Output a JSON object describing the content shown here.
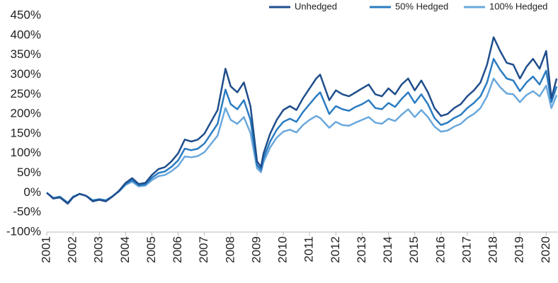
{
  "chart_data": {
    "type": "line",
    "x": [
      2001,
      2001.25,
      2001.5,
      2001.8,
      2002,
      2002.25,
      2002.5,
      2002.75,
      2003,
      2003.25,
      2003.5,
      2003.75,
      2004,
      2004.25,
      2004.5,
      2004.75,
      2005,
      2005.25,
      2005.5,
      2005.75,
      2006,
      2006.25,
      2006.5,
      2006.75,
      2007,
      2007.25,
      2007.5,
      2007.8,
      2008,
      2008.25,
      2008.5,
      2008.75,
      2009,
      2009.15,
      2009.25,
      2009.5,
      2009.75,
      2010,
      2010.25,
      2010.5,
      2010.75,
      2011,
      2011.25,
      2011.4,
      2011.75,
      2012,
      2012.25,
      2012.5,
      2012.75,
      2013,
      2013.25,
      2013.5,
      2013.75,
      2014,
      2014.25,
      2014.5,
      2014.75,
      2015,
      2015.25,
      2015.5,
      2015.75,
      2016,
      2016.25,
      2016.5,
      2016.75,
      2017,
      2017.25,
      2017.5,
      2017.75,
      2018,
      2018.25,
      2018.5,
      2018.75,
      2019,
      2019.25,
      2019.5,
      2019.75,
      2020,
      2020.2,
      2020.4
    ],
    "series": [
      {
        "name": "Unhedged",
        "color": "#1f4e8c",
        "values": [
          0,
          -15,
          -12,
          -28,
          -12,
          -3,
          -8,
          -22,
          -18,
          -22,
          -10,
          5,
          25,
          37,
          22,
          25,
          45,
          60,
          65,
          80,
          100,
          135,
          130,
          135,
          150,
          180,
          210,
          315,
          270,
          255,
          280,
          220,
          80,
          65,
          100,
          150,
          185,
          210,
          220,
          210,
          240,
          265,
          290,
          300,
          235,
          260,
          250,
          245,
          255,
          265,
          275,
          250,
          245,
          265,
          250,
          275,
          290,
          260,
          285,
          255,
          215,
          195,
          200,
          215,
          225,
          245,
          260,
          280,
          325,
          395,
          360,
          330,
          325,
          290,
          320,
          340,
          315,
          360,
          240,
          290
        ]
      },
      {
        "name": "50% Hedged",
        "color": "#2a7cc1",
        "values": [
          0,
          -14,
          -11,
          -26,
          -11,
          -3,
          -8,
          -20,
          -17,
          -20,
          -9,
          4,
          22,
          32,
          19,
          21,
          38,
          50,
          54,
          66,
          82,
          112,
          108,
          112,
          125,
          150,
          175,
          262,
          225,
          212,
          235,
          185,
          70,
          58,
          88,
          130,
          160,
          180,
          188,
          180,
          205,
          225,
          245,
          255,
          200,
          220,
          212,
          208,
          218,
          225,
          235,
          215,
          212,
          228,
          218,
          238,
          255,
          228,
          250,
          225,
          190,
          172,
          178,
          190,
          198,
          215,
          228,
          245,
          280,
          340,
          312,
          290,
          285,
          258,
          280,
          295,
          275,
          310,
          230,
          270
        ]
      },
      {
        "name": "100% Hedged",
        "color": "#6aa8dc",
        "values": [
          0,
          -13,
          -10,
          -25,
          -10,
          -3,
          -8,
          -19,
          -16,
          -19,
          -9,
          3,
          20,
          28,
          16,
          18,
          32,
          42,
          45,
          55,
          68,
          92,
          90,
          93,
          103,
          124,
          145,
          215,
          185,
          175,
          192,
          152,
          62,
          52,
          78,
          115,
          140,
          155,
          160,
          153,
          172,
          185,
          195,
          190,
          165,
          180,
          172,
          170,
          178,
          185,
          192,
          178,
          175,
          188,
          182,
          198,
          212,
          192,
          210,
          192,
          168,
          155,
          158,
          168,
          175,
          190,
          200,
          215,
          245,
          290,
          268,
          252,
          250,
          230,
          248,
          258,
          245,
          272,
          215,
          248
        ]
      }
    ],
    "xlim": [
      2001,
      2020.45
    ],
    "xticks": [
      2001,
      2002,
      2003,
      2004,
      2005,
      2006,
      2007,
      2008,
      2009,
      2010,
      2011,
      2012,
      2013,
      2014,
      2015,
      2016,
      2017,
      2018,
      2019,
      2020
    ],
    "ylim": [
      -100,
      450
    ],
    "yticks": [
      {
        "value": -100,
        "label": "-100%"
      },
      {
        "value": -50,
        "label": "-50%"
      },
      {
        "value": 0,
        "label": "0%"
      },
      {
        "value": 50,
        "label": "50%"
      },
      {
        "value": 100,
        "label": "100%"
      },
      {
        "value": 150,
        "label": "150%"
      },
      {
        "value": 200,
        "label": "200%"
      },
      {
        "value": 250,
        "label": "250%"
      },
      {
        "value": 300,
        "label": "300%"
      },
      {
        "value": 350,
        "label": "350%"
      },
      {
        "value": 400,
        "label": "400%"
      },
      {
        "value": 450,
        "label": "450%"
      }
    ],
    "grid": false
  }
}
